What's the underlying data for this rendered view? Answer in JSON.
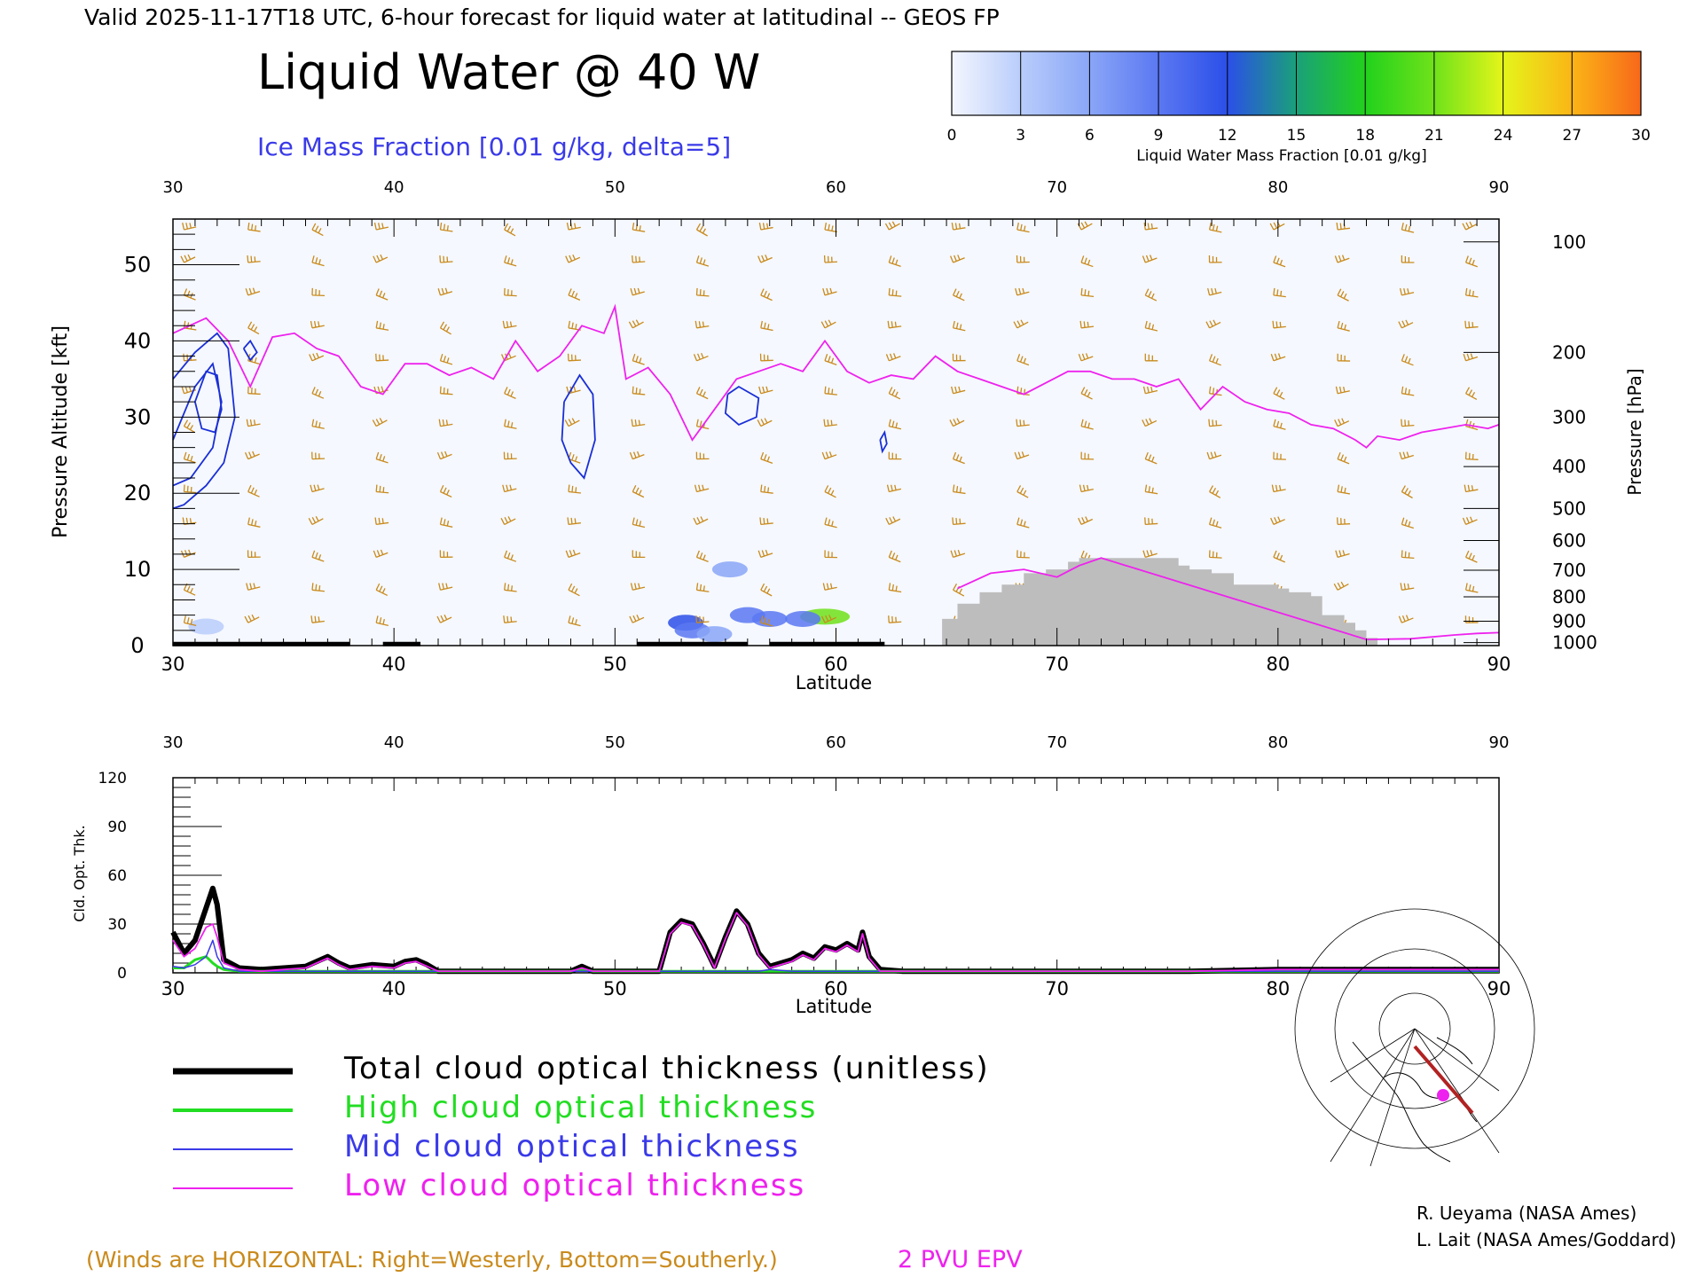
{
  "header": {
    "valid_line": "Valid 2025-11-17T18 UTC, 6-hour forecast for liquid water at latitudinal -- GEOS FP",
    "title": "Liquid Water @ 40 W",
    "subtitle": "Ice Mass Fraction [0.01 g/kg, delta=5]"
  },
  "colorbar": {
    "ticks": [
      "0",
      "3",
      "6",
      "9",
      "12",
      "15",
      "18",
      "21",
      "24",
      "27",
      "30"
    ],
    "label": "Liquid Water Mass Fraction [0.01 g/kg]",
    "colors": [
      "#f4f6fe",
      "#b9cdfb",
      "#8aa6f7",
      "#5b78f2",
      "#2b4fe8",
      "#1aa07a",
      "#22d11c",
      "#6fe21a",
      "#e4f51a",
      "#fbb516",
      "#f8681a"
    ]
  },
  "footer": {
    "winds_note": "(Winds are HORIZONTAL: Right=Westerly, Bottom=Southerly.)",
    "pvu_label": "2 PVU EPV",
    "credit1": "R. Ueyama (NASA Ames)",
    "credit2": "L. Lait (NASA Ames/Goddard)"
  },
  "legend": {
    "items": [
      {
        "label": "Total cloud optical thickness (unitless)",
        "color": "#000000"
      },
      {
        "label": "High cloud optical thickness",
        "color": "#22dd22"
      },
      {
        "label": "Mid cloud optical thickness",
        "color": "#3a3ae8"
      },
      {
        "label": "Low cloud optical thickness",
        "color": "#ee22ee"
      }
    ]
  },
  "colors": {
    "wind": "#c98a1c",
    "pvu": "#ee22ee",
    "ice": "#1a2fd6",
    "terrain": "#bdbdbd"
  },
  "chart_data": [
    {
      "type": "heatmap",
      "title": "Liquid Water @ 40 W",
      "xlabel": "Latitude",
      "ylabel": "Pressure Altitude [kft]",
      "ylabel_right": "Pressure [hPa]",
      "xlim": [
        30,
        90
      ],
      "ylim": [
        0,
        56
      ],
      "xticks": [
        "30",
        "40",
        "50",
        "60",
        "70",
        "80",
        "90"
      ],
      "yticks": [
        "0",
        "10",
        "20",
        "30",
        "40",
        "50"
      ],
      "pressure_ticks": [
        {
          "label": "100",
          "kft": 53
        },
        {
          "label": "200",
          "kft": 38.5
        },
        {
          "label": "300",
          "kft": 30
        },
        {
          "label": "400",
          "kft": 23.5
        },
        {
          "label": "500",
          "kft": 18
        },
        {
          "label": "600",
          "kft": 13.8
        },
        {
          "label": "700",
          "kft": 9.9
        },
        {
          "label": "800",
          "kft": 6.4
        },
        {
          "label": "900",
          "kft": 3.2
        },
        {
          "label": "1000",
          "kft": 0.4
        }
      ],
      "pvu_2_line": {
        "lat": [
          30,
          31.5,
          32.5,
          33.5,
          34.5,
          35.5,
          36.5,
          37.5,
          38.5,
          39.5,
          40.5,
          41.5,
          42.5,
          43.5,
          44.5,
          45.5,
          46.5,
          47.5,
          48.5,
          49.5,
          50,
          50.5,
          51.5,
          52.5,
          53.5,
          54.5,
          55.5,
          56.5,
          57.5,
          58.5,
          59.5,
          60.5,
          61.5,
          62.5,
          63.5,
          64.5,
          65.5,
          66.5,
          67.5,
          68.5,
          69.5,
          70.5,
          71.5,
          72.5,
          73.5,
          74.5,
          75.5,
          76.5,
          77.5,
          78.5,
          79.5,
          80.5,
          81.5,
          82.5,
          83.5,
          84,
          84.5,
          85.5,
          86.5,
          87.5,
          88.5,
          89.5,
          90
        ],
        "kft": [
          41,
          43,
          40,
          34,
          40.5,
          41,
          39,
          38,
          34,
          33,
          37,
          37,
          35.5,
          36.5,
          35,
          40,
          36,
          38,
          42,
          41,
          44.5,
          35,
          36.5,
          33,
          27,
          31,
          35,
          36,
          37,
          36,
          40,
          36,
          34.5,
          35.5,
          35,
          38,
          36,
          35,
          34,
          33,
          34.5,
          36,
          36,
          35,
          35,
          34,
          35,
          31,
          34,
          32,
          31,
          30.5,
          29,
          28.5,
          27,
          26,
          27.5,
          27,
          28,
          28.5,
          29,
          28.5,
          29
        ]
      },
      "pvu_2_lower_tail": {
        "lat": [
          65.5,
          67,
          68.5,
          70,
          71,
          72,
          84,
          86,
          88,
          89,
          90
        ],
        "kft": [
          7.5,
          9.5,
          10,
          9,
          10.5,
          11.5,
          0.8,
          0.9,
          1.4,
          1.6,
          1.7
        ]
      },
      "ice_contours": [
        {
          "level": 5,
          "lat": [
            30,
            31,
            32,
            32.5,
            32.8,
            32.3,
            31.5,
            30.5,
            30
          ],
          "kft": [
            35,
            38.5,
            41,
            39,
            30,
            24,
            21,
            18.5,
            18
          ]
        },
        {
          "level": 10,
          "lat": [
            30,
            31,
            31.8,
            32.2,
            31.8,
            30.8,
            30
          ],
          "kft": [
            27,
            34,
            37,
            32,
            26,
            22,
            21
          ]
        },
        {
          "level": 15,
          "lat": [
            31,
            31.5,
            32,
            32.2,
            31.9,
            31.3,
            31
          ],
          "kft": [
            32,
            36,
            35.5,
            31,
            28,
            28.5,
            32
          ]
        },
        {
          "level": 5,
          "lat": [
            33.2,
            33.5,
            33.8,
            33.5,
            33.2
          ],
          "kft": [
            39,
            40,
            38.5,
            37.5,
            39
          ]
        },
        {
          "level": 5,
          "lat": [
            47.7,
            48.4,
            49,
            49.1,
            48.6,
            48,
            47.6,
            47.7
          ],
          "kft": [
            32,
            35.5,
            33,
            27,
            22,
            24,
            27,
            32
          ]
        },
        {
          "level": 5,
          "lat": [
            55.1,
            55.6,
            56.5,
            56.4,
            55.6,
            55,
            55.1
          ],
          "kft": [
            33,
            34,
            32.5,
            30,
            29,
            30.5,
            33
          ]
        },
        {
          "level": 5,
          "lat": [
            62,
            62.2,
            62.3,
            62.1,
            62
          ],
          "kft": [
            27,
            28,
            26.5,
            25.5,
            27
          ]
        }
      ],
      "terrain": {
        "lat": [
          64.8,
          65,
          65.5,
          66,
          66.5,
          67,
          67.5,
          68,
          68.5,
          69,
          69.5,
          70,
          70.5,
          71,
          71.5,
          72,
          72.5,
          73,
          73.5,
          74,
          74.5,
          75,
          75.5,
          76,
          76.5,
          77,
          77.5,
          78,
          78.5,
          79,
          79.5,
          80,
          80.5,
          81,
          81.5,
          82,
          82.5,
          83,
          83.5,
          84,
          84.5,
          90
        ],
        "top_kft": [
          3.5,
          3.5,
          5.5,
          5.5,
          7,
          7,
          8,
          8,
          9.5,
          9.5,
          10,
          10,
          11,
          11.5,
          11.5,
          11.5,
          11.5,
          11.5,
          11.5,
          11.5,
          11.5,
          11.5,
          10.5,
          10,
          10,
          9.5,
          9.5,
          8,
          8,
          8,
          8,
          7.5,
          7,
          7,
          6.5,
          4,
          4,
          3,
          2,
          1,
          0,
          0
        ]
      },
      "liquid_water_patches": [
        {
          "lat": 53.2,
          "kft": 3,
          "value": 12
        },
        {
          "lat": 53.5,
          "kft": 2,
          "value": 9
        },
        {
          "lat": 54.5,
          "kft": 1.5,
          "value": 6
        },
        {
          "lat": 55.2,
          "kft": 10,
          "value": 5
        },
        {
          "lat": 56,
          "kft": 4,
          "value": 9
        },
        {
          "lat": 57,
          "kft": 3.5,
          "value": 9
        },
        {
          "lat": 59.5,
          "kft": 3.8,
          "value": 21
        },
        {
          "lat": 58.5,
          "kft": 3.5,
          "value": 9
        },
        {
          "lat": 31.5,
          "kft": 2.5,
          "value": 3
        }
      ],
      "wind_barbs_note": "Winds are HORIZONTAL: Right=Westerly, Bottom=Southerly."
    },
    {
      "type": "line",
      "xlabel": "Latitude",
      "ylabel": "Cld. Opt. Thk.",
      "xlim": [
        30,
        90
      ],
      "ylim": [
        0,
        120
      ],
      "xticks": [
        "30",
        "40",
        "50",
        "60",
        "70",
        "80",
        "90"
      ],
      "yticks": [
        "0",
        "30",
        "60",
        "90",
        "120"
      ],
      "x": [
        30,
        30.5,
        31,
        31.5,
        31.8,
        32,
        32.3,
        33,
        34,
        35,
        36,
        37,
        37.5,
        38,
        39,
        40,
        40.5,
        41,
        41.5,
        42,
        45,
        48,
        48.5,
        49,
        50,
        51,
        52,
        52.5,
        53,
        53.5,
        54,
        54.5,
        55,
        55.5,
        56,
        56.5,
        57,
        58,
        58.5,
        59,
        59.5,
        60,
        60.5,
        61,
        61.2,
        61.5,
        62,
        63,
        70,
        76,
        80,
        86,
        90
      ],
      "series": [
        {
          "name": "Total cloud optical thickness (unitless)",
          "color": "#000000",
          "values": [
            25,
            12,
            20,
            40,
            52,
            42,
            8,
            3,
            2,
            3,
            4,
            10,
            6,
            3,
            5,
            4,
            7,
            8,
            5,
            1,
            1,
            1,
            4,
            1,
            1,
            1,
            1,
            25,
            32,
            30,
            18,
            4,
            22,
            38,
            30,
            12,
            4,
            8,
            12,
            9,
            16,
            14,
            18,
            14,
            25,
            10,
            2,
            1,
            1,
            1,
            2,
            2,
            2
          ]
        },
        {
          "name": "High cloud optical thickness",
          "color": "#22dd22",
          "values": [
            3,
            3,
            8,
            10,
            6,
            4,
            2,
            1,
            1,
            1,
            1,
            1,
            1,
            1,
            1,
            1,
            1,
            1,
            1,
            1,
            1,
            1,
            2,
            1,
            1,
            1,
            1,
            1,
            1,
            1,
            1,
            1,
            1,
            1,
            1,
            1,
            1,
            1,
            1,
            1,
            1,
            1,
            1,
            1,
            1,
            1,
            1,
            1,
            1,
            1,
            1,
            1,
            1
          ]
        },
        {
          "name": "Mid cloud optical thickness",
          "color": "#3a3ae8",
          "values": [
            4,
            3,
            5,
            10,
            20,
            10,
            3,
            1,
            1,
            1,
            1,
            1,
            1,
            1,
            1,
            1,
            1,
            1,
            1,
            1,
            1,
            1,
            1,
            1,
            1,
            1,
            1,
            1,
            1,
            1,
            1,
            1,
            1,
            1,
            1,
            1,
            2,
            1,
            1,
            1,
            1,
            1,
            1,
            1,
            1,
            1,
            1,
            1,
            1,
            1,
            1,
            1,
            1
          ]
        },
        {
          "name": "Low cloud optical thickness",
          "color": "#ee22ee",
          "values": [
            20,
            10,
            15,
            28,
            30,
            22,
            6,
            2,
            1,
            2,
            3,
            9,
            5,
            2,
            4,
            3,
            6,
            7,
            4,
            1,
            1,
            1,
            3,
            1,
            1,
            1,
            1,
            24,
            31,
            29,
            17,
            3,
            21,
            37,
            29,
            11,
            3,
            7,
            11,
            8,
            15,
            13,
            17,
            13,
            24,
            9,
            1,
            1,
            1,
            1,
            2,
            2,
            2
          ]
        }
      ]
    }
  ]
}
